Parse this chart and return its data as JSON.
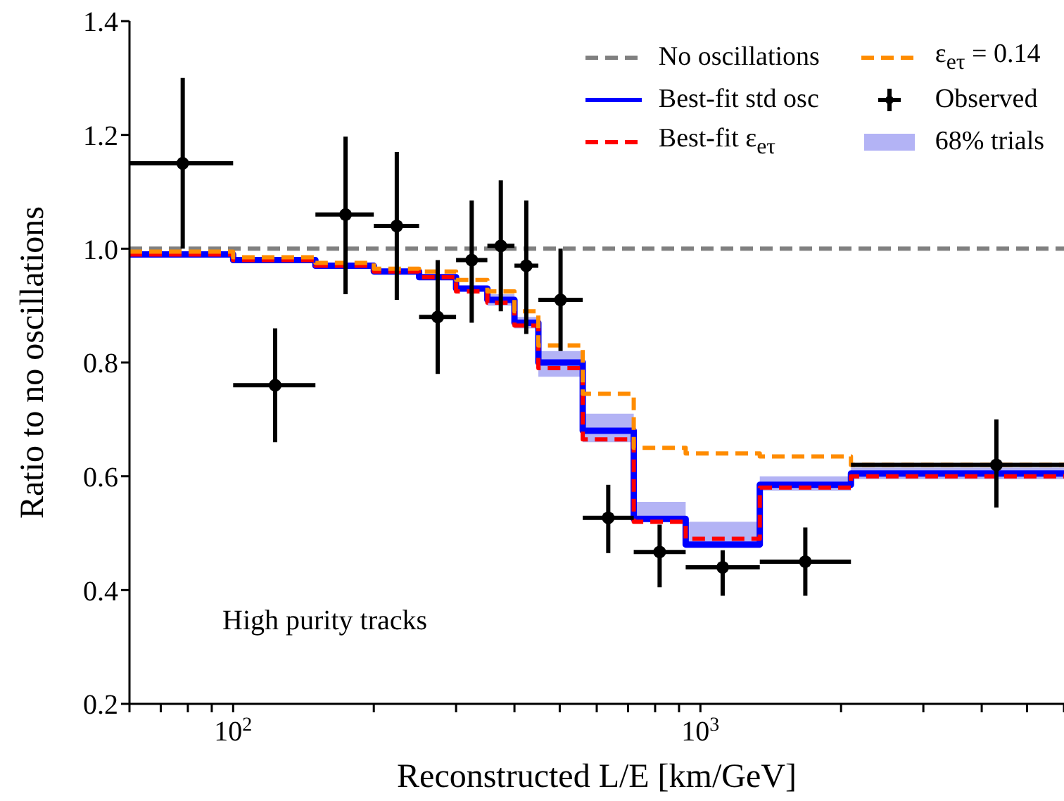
{
  "chart_data": {
    "type": "step",
    "xlabel": "Reconstructed L/E [km/GeV]",
    "ylabel": "Ratio to no oscillations",
    "log": "x",
    "xlim": [
      60,
      6000
    ],
    "ylim": [
      0.2,
      1.4
    ],
    "xticks": [
      {
        "value": 60,
        "label": null
      },
      {
        "value": 70,
        "label": null
      },
      {
        "value": 80,
        "label": null
      },
      {
        "value": 90,
        "label": null
      },
      {
        "value": 100,
        "label": "10$^{2}$"
      },
      {
        "value": 200,
        "label": null
      },
      {
        "value": 300,
        "label": null
      },
      {
        "value": 400,
        "label": null
      },
      {
        "value": 500,
        "label": null
      },
      {
        "value": 600,
        "label": null
      },
      {
        "value": 700,
        "label": null
      },
      {
        "value": 800,
        "label": null
      },
      {
        "value": 900,
        "label": null
      },
      {
        "value": 1000,
        "label": "10$^{3}$"
      },
      {
        "value": 2000,
        "label": null
      },
      {
        "value": 3000,
        "label": null
      },
      {
        "value": 4000,
        "label": null
      },
      {
        "value": 5000,
        "label": null
      },
      {
        "value": 6000,
        "label": null
      }
    ],
    "yticks": [
      {
        "value": 0.2,
        "label": "0.2"
      },
      {
        "value": 0.4,
        "label": "0.4"
      },
      {
        "value": 0.6,
        "label": "0.6"
      },
      {
        "value": 0.8,
        "label": "0.8"
      },
      {
        "value": 1,
        "label": "1.0"
      },
      {
        "value": 1.2,
        "label": "1.2"
      },
      {
        "value": 1.4,
        "label": "1.4"
      }
    ],
    "grid": false,
    "legend": "top right",
    "annotations": [
      "High purity tracks"
    ],
    "x": [
      60,
      100,
      150,
      200,
      250,
      300,
      350,
      400,
      450,
      560,
      720,
      930,
      1340,
      2100,
      6000
    ],
    "series": [
      {
        "name": "No oscillations",
        "color": "#808080",
        "line_style": "dashed",
        "values": [
          1,
          1,
          1,
          1,
          1,
          1,
          1,
          1,
          1,
          1,
          1,
          1,
          1,
          1,
          1
        ]
      },
      {
        "name": "Best-fit std osc",
        "color": "#0000ff",
        "line_style": "solid",
        "values": [
          0.99,
          0.98,
          0.97,
          0.96,
          0.95,
          0.93,
          0.91,
          0.87,
          0.8,
          0.68,
          0.525,
          0.48,
          0.585,
          0.605,
          0.605
        ]
      },
      {
        "name": "Best-fit ε$_{eτ}$",
        "color": "#ff0000",
        "line_style": "dashed",
        "values": [
          0.99,
          0.98,
          0.97,
          0.96,
          0.95,
          0.925,
          0.905,
          0.865,
          0.79,
          0.665,
          0.52,
          0.49,
          0.58,
          0.6,
          0.6
        ]
      },
      {
        "name": "ε$_{eτ}$ = 0.14",
        "color": "#ff8c00",
        "line_style": "dashed",
        "values": [
          0.995,
          0.985,
          0.975,
          0.965,
          0.96,
          0.945,
          0.925,
          0.89,
          0.83,
          0.745,
          0.65,
          0.64,
          0.635,
          0.62,
          0.62
        ]
      },
      {
        "name": "Observed",
        "type": "scatter",
        "color": "#000000",
        "marker": "circle",
        "x": [
          78,
          123,
          174,
          224,
          274,
          324,
          374,
          424,
          502,
          635,
          818,
          1116,
          1677,
          4300
        ],
        "values": [
          1.15,
          0.76,
          1.06,
          1.04,
          0.88,
          0.98,
          1.005,
          0.97,
          0.91,
          0.527,
          0.467,
          0.44,
          0.45,
          0.62
        ],
        "errors": [
          [
            1.0,
            1.3
          ],
          [
            0.66,
            0.86
          ],
          [
            0.92,
            1.197
          ],
          [
            0.91,
            1.17
          ],
          [
            0.78,
            0.98
          ],
          [
            0.87,
            1.085
          ],
          [
            0.89,
            1.12
          ],
          [
            0.85,
            1.085
          ],
          [
            0.82,
            1.0
          ],
          [
            0.465,
            0.585
          ],
          [
            0.405,
            0.515
          ],
          [
            0.39,
            0.47
          ],
          [
            0.39,
            0.51
          ],
          [
            0.545,
            0.7
          ]
        ],
        "xerrors": [
          [
            60,
            100
          ],
          [
            100,
            150
          ],
          [
            150,
            200
          ],
          [
            200,
            250
          ],
          [
            250,
            300
          ],
          [
            300,
            350
          ],
          [
            350,
            400
          ],
          [
            400,
            450
          ],
          [
            450,
            560
          ],
          [
            560,
            720
          ],
          [
            720,
            930
          ],
          [
            930,
            1340
          ],
          [
            1340,
            2100
          ],
          [
            2100,
            6000
          ]
        ]
      },
      {
        "name": "68% trials",
        "type": "area",
        "color": "#b3b3f5",
        "values": [
          null,
          null,
          null,
          null,
          null,
          null,
          null,
          null,
          null,
          null,
          null,
          null,
          null,
          null,
          null
        ],
        "lower": [
          0.985,
          0.975,
          0.965,
          0.955,
          0.945,
          0.925,
          0.9,
          0.86,
          0.775,
          0.66,
          0.52,
          0.475,
          0.575,
          0.595,
          0.595
        ],
        "upper": [
          0.995,
          0.985,
          0.975,
          0.965,
          0.955,
          0.935,
          0.92,
          0.88,
          0.82,
          0.71,
          0.555,
          0.52,
          0.6,
          0.615,
          0.615
        ]
      }
    ]
  }
}
